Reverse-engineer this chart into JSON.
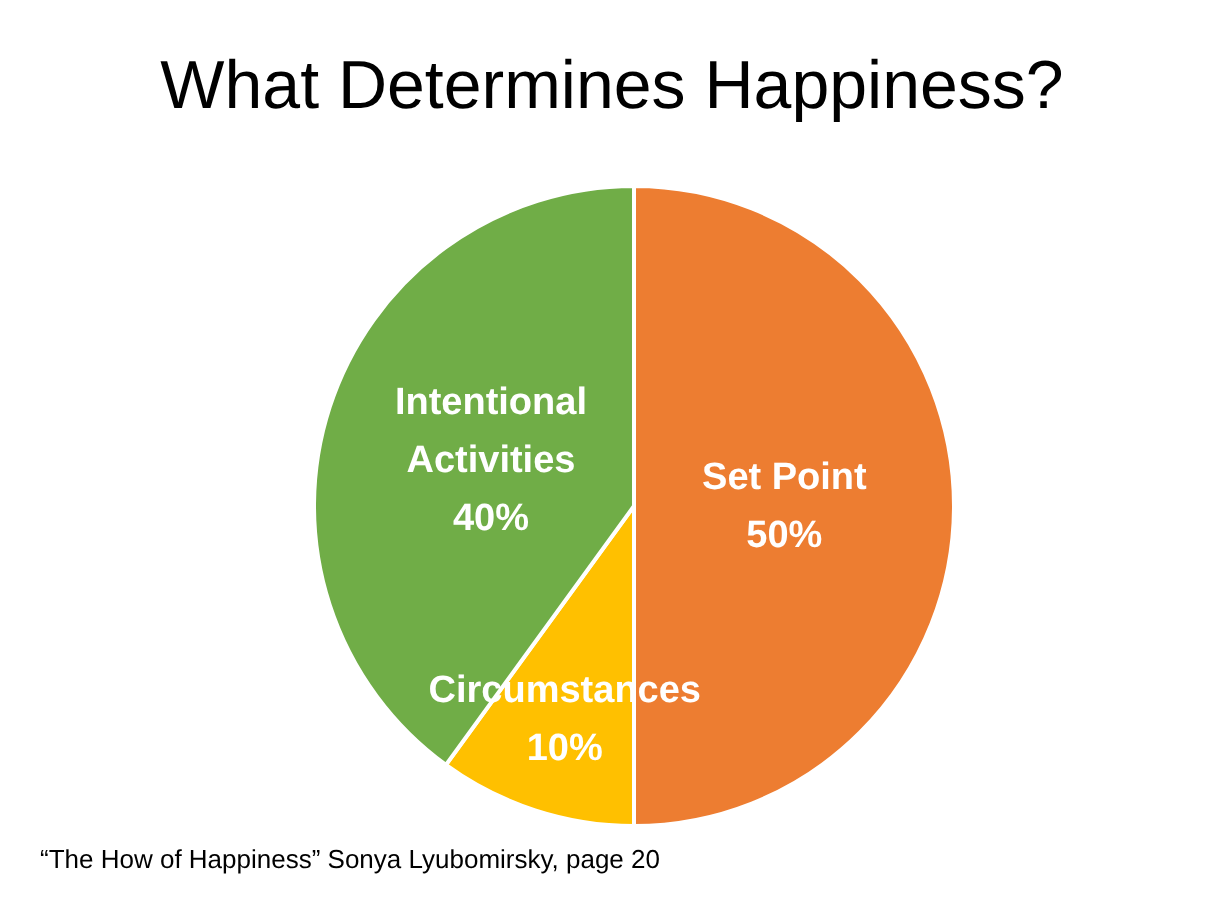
{
  "chart_data": {
    "type": "pie",
    "title": "What Determines Happiness?",
    "categories": [
      "Set Point",
      "Circumstances",
      "Intentional Activities"
    ],
    "values": [
      50,
      10,
      40
    ],
    "colors": [
      "#ed7d31",
      "#ffc000",
      "#70ad47"
    ],
    "value_labels": [
      "50%",
      "10%",
      "40%"
    ],
    "annotations": [
      "“The How of Happiness” Sonya Lyubomirsky, page 20"
    ]
  }
}
